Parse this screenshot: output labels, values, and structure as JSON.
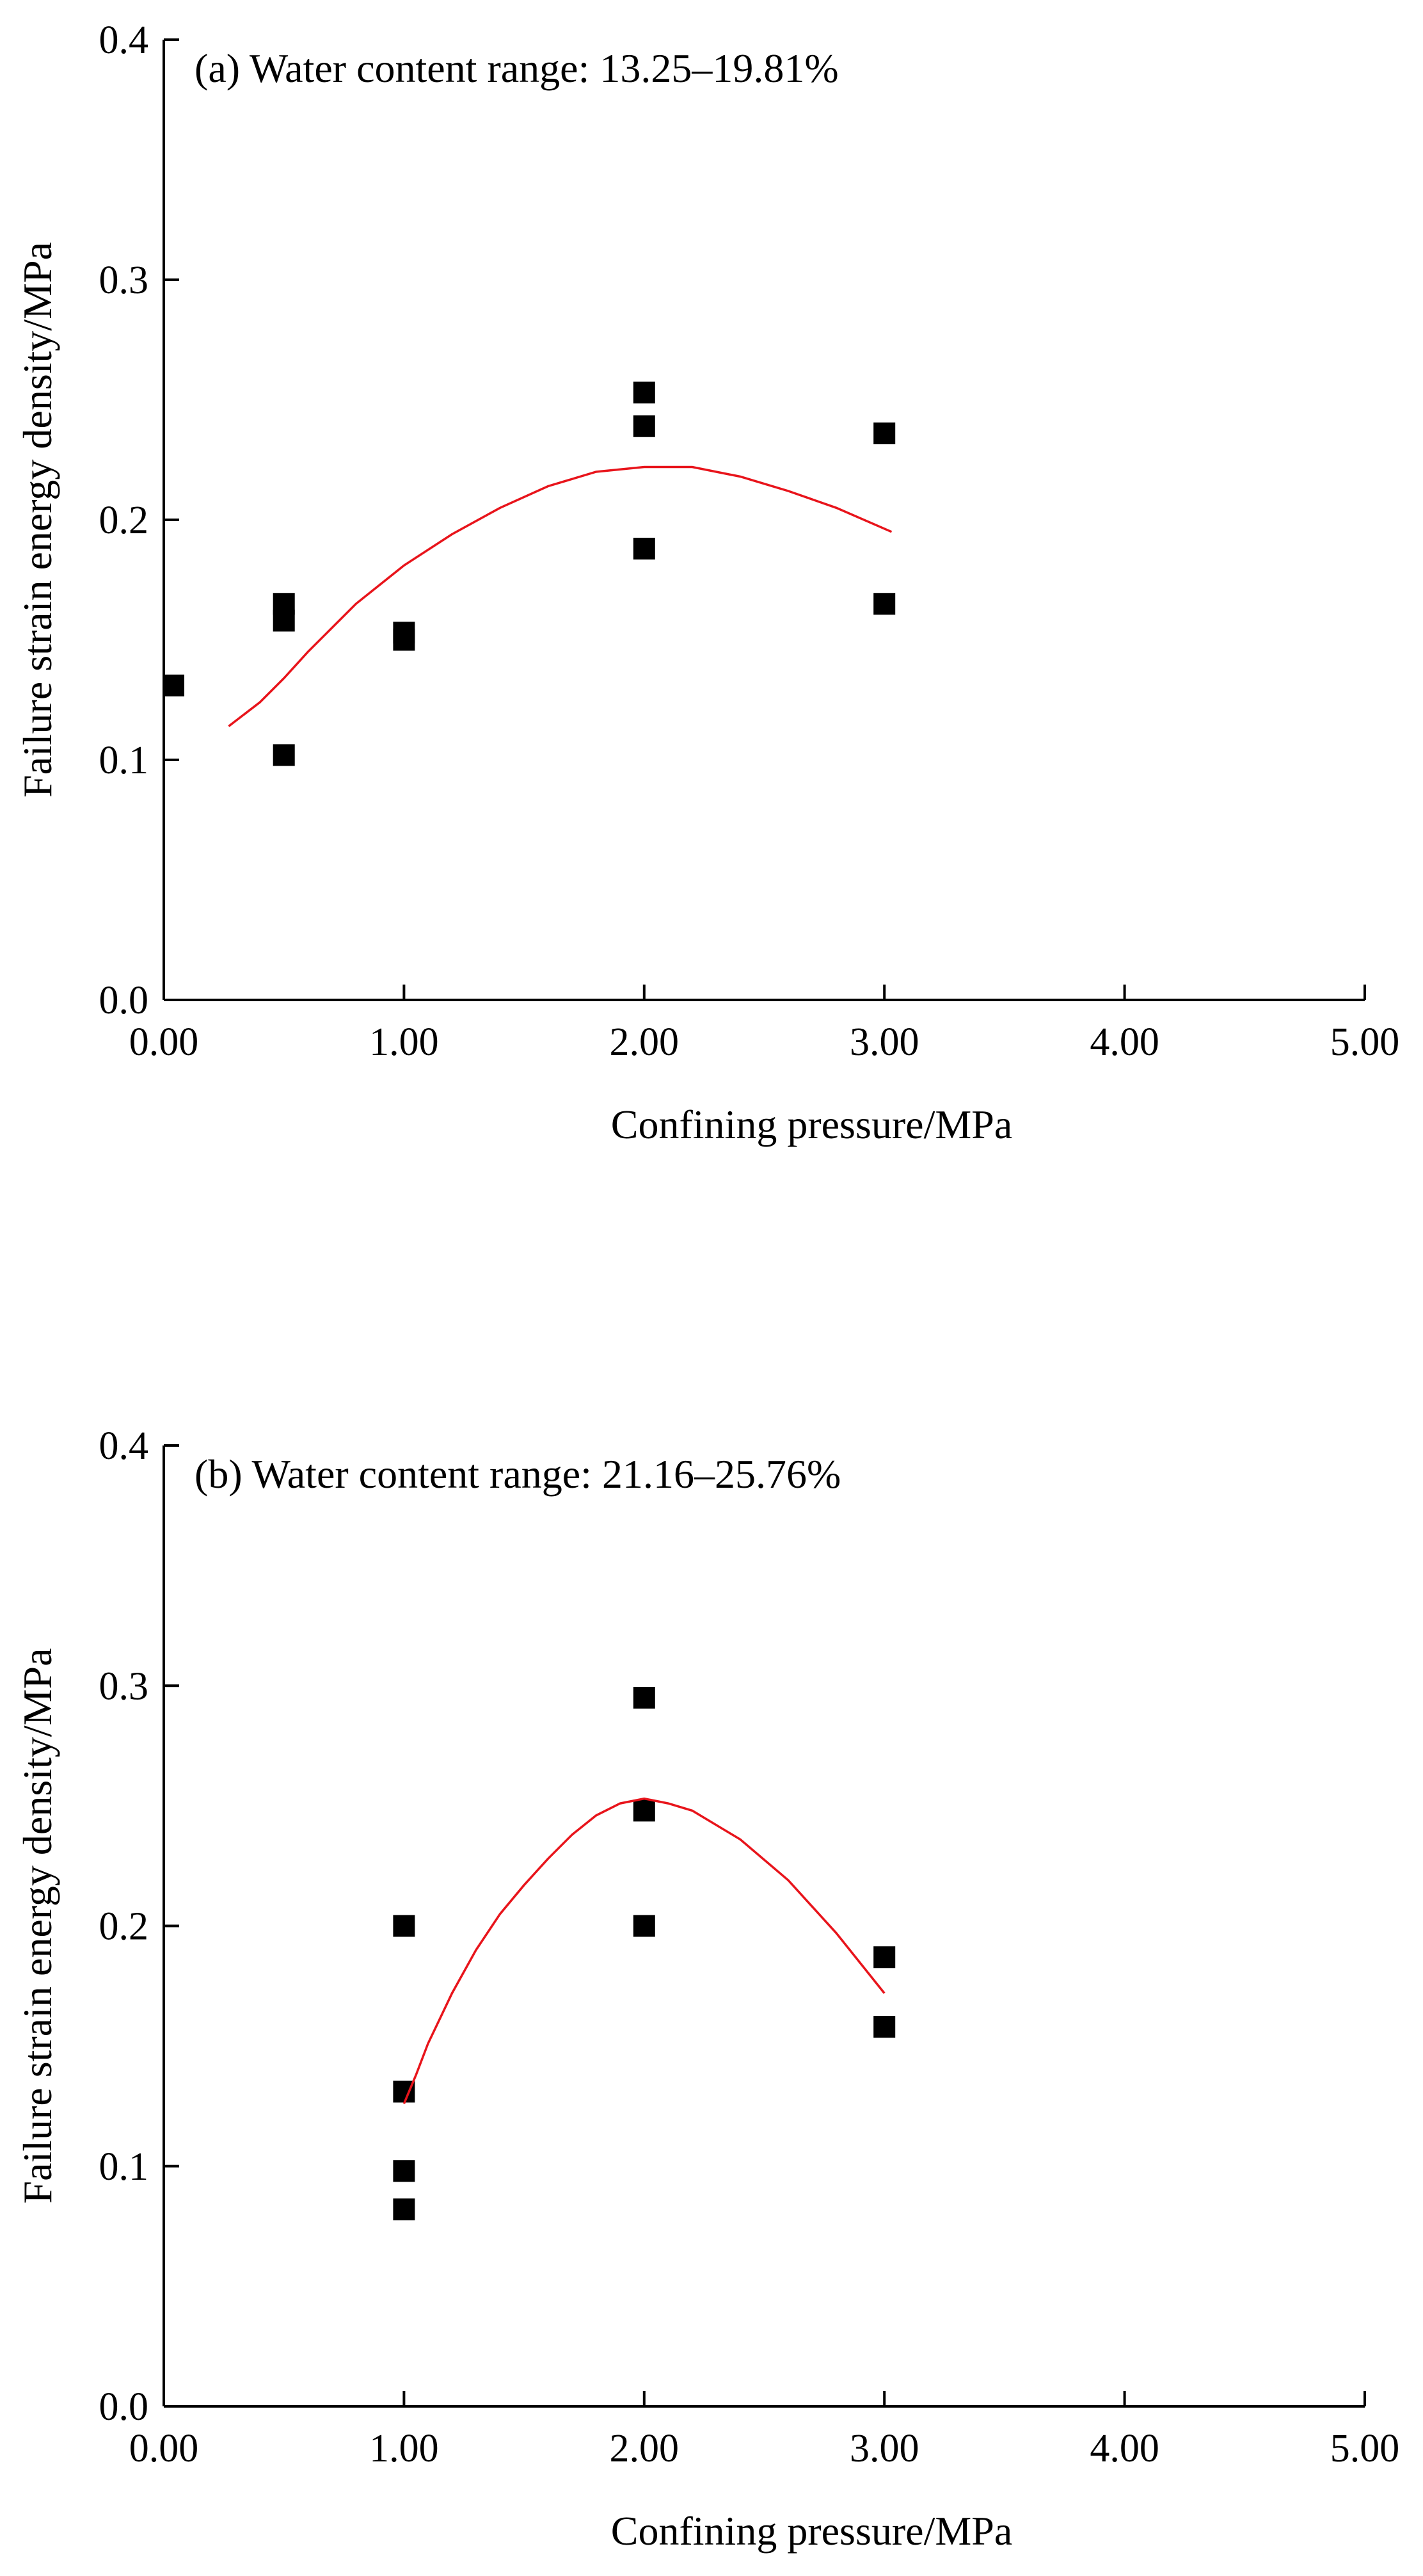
{
  "colors": {
    "marker": "#000000",
    "fit": "#e8141b",
    "axis": "#000000"
  },
  "chart_data": [
    {
      "type": "scatter",
      "title": "(a) Water content range: 13.25–19.81%",
      "xlabel": "Confining pressure/MPa",
      "ylabel": "Failure strain energy density/MPa",
      "xlim": [
        0,
        5
      ],
      "ylim": [
        0,
        0.4
      ],
      "xticks": [
        0,
        1,
        2,
        3,
        4,
        5
      ],
      "xtick_labels": [
        "0.00",
        "1.00",
        "2.00",
        "3.00",
        "4.00",
        "5.00"
      ],
      "yticks": [
        0,
        0.1,
        0.2,
        0.3,
        0.4
      ],
      "ytick_labels": [
        "0.0",
        "0.1",
        "0.2",
        "0.3",
        "0.4"
      ],
      "grid": false,
      "series": [
        {
          "name": "measured",
          "kind": "scatter",
          "marker": "square",
          "x": [
            0.04,
            0.5,
            0.5,
            0.5,
            1.0,
            1.0,
            2.0,
            2.0,
            2.0,
            3.0,
            3.0
          ],
          "y": [
            0.131,
            0.165,
            0.158,
            0.102,
            0.153,
            0.15,
            0.253,
            0.239,
            0.188,
            0.236,
            0.165
          ]
        },
        {
          "name": "fit",
          "kind": "line",
          "x": [
            0.27,
            0.4,
            0.5,
            0.6,
            0.7,
            0.8,
            0.9,
            1.0,
            1.2,
            1.4,
            1.6,
            1.8,
            2.0,
            2.2,
            2.4,
            2.6,
            2.8,
            3.03
          ],
          "y": [
            0.114,
            0.124,
            0.134,
            0.145,
            0.155,
            0.165,
            0.173,
            0.181,
            0.194,
            0.205,
            0.214,
            0.22,
            0.222,
            0.222,
            0.218,
            0.212,
            0.205,
            0.195
          ]
        }
      ]
    },
    {
      "type": "scatter",
      "title": "(b) Water content range: 21.16–25.76%",
      "xlabel": "Confining pressure/MPa",
      "ylabel": "Failure strain energy density/MPa",
      "xlim": [
        0,
        5
      ],
      "ylim": [
        0,
        0.4
      ],
      "xticks": [
        0,
        1,
        2,
        3,
        4,
        5
      ],
      "xtick_labels": [
        "0.00",
        "1.00",
        "2.00",
        "3.00",
        "4.00",
        "5.00"
      ],
      "yticks": [
        0,
        0.1,
        0.2,
        0.3,
        0.4
      ],
      "ytick_labels": [
        "0.0",
        "0.1",
        "0.2",
        "0.3",
        "0.4"
      ],
      "grid": false,
      "series": [
        {
          "name": "measured",
          "kind": "scatter",
          "marker": "square",
          "x": [
            1.0,
            1.0,
            1.0,
            1.0,
            2.0,
            2.0,
            2.0,
            3.0,
            3.0
          ],
          "y": [
            0.2,
            0.131,
            0.098,
            0.082,
            0.295,
            0.248,
            0.2,
            0.187,
            0.158
          ]
        },
        {
          "name": "fit",
          "kind": "line",
          "x": [
            1.0,
            1.05,
            1.1,
            1.2,
            1.3,
            1.4,
            1.5,
            1.6,
            1.7,
            1.8,
            1.9,
            2.0,
            2.1,
            2.2,
            2.4,
            2.6,
            2.8,
            3.0
          ],
          "y": [
            0.126,
            0.138,
            0.151,
            0.172,
            0.19,
            0.205,
            0.217,
            0.228,
            0.238,
            0.246,
            0.251,
            0.253,
            0.251,
            0.248,
            0.236,
            0.219,
            0.197,
            0.172
          ]
        }
      ]
    }
  ]
}
